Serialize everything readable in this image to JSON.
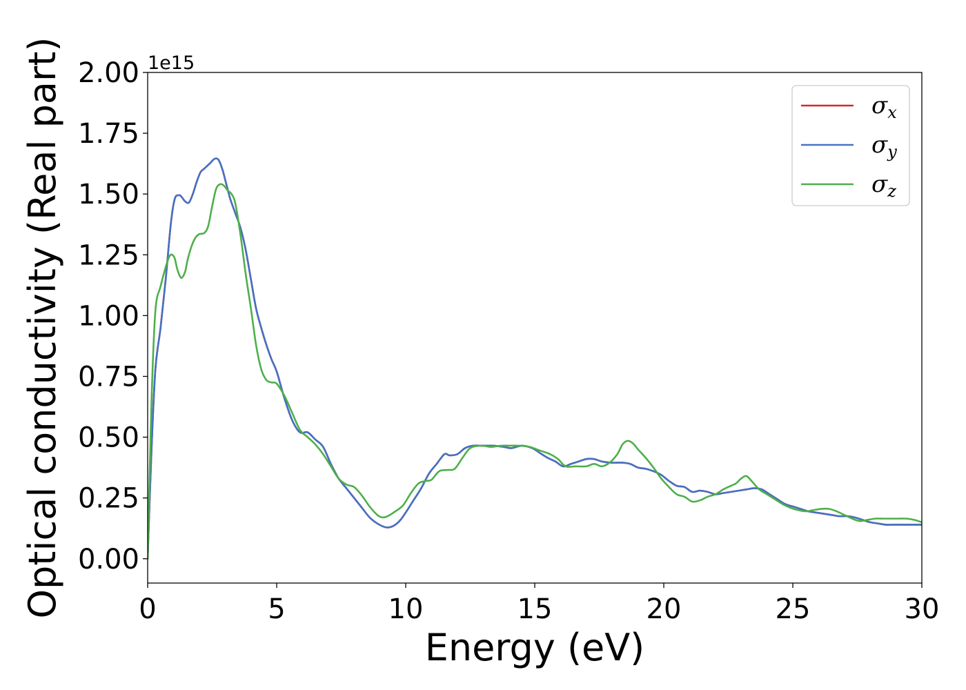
{
  "chart_data": {
    "type": "line",
    "xlabel": "Energy (eV)",
    "ylabel": "Optical conductivity (Real part)",
    "y_offset_text": "1e15",
    "y_scale_factor": 1000000000000000.0,
    "xlim": [
      0,
      30
    ],
    "ylim": [
      -0.1,
      2.0
    ],
    "x_ticks": [
      0,
      5,
      10,
      15,
      20,
      25,
      30
    ],
    "x_tick_labels": [
      "0",
      "5",
      "10",
      "15",
      "20",
      "25",
      "30"
    ],
    "y_ticks": [
      0.0,
      0.25,
      0.5,
      0.75,
      1.0,
      1.25,
      1.5,
      1.75,
      2.0
    ],
    "y_tick_labels": [
      "0.00",
      "0.25",
      "0.50",
      "0.75",
      "1.00",
      "1.25",
      "1.50",
      "1.75",
      "2.00"
    ],
    "grid": false,
    "legend_position": "top-right",
    "series": [
      {
        "name": "σx",
        "legend_base": "σ",
        "legend_sub": "x",
        "color": "#d62728",
        "x": [
          0,
          0.15,
          0.3,
          0.5,
          0.7,
          0.9,
          1.05,
          1.2,
          1.3,
          1.45,
          1.6,
          1.75,
          1.9,
          2.05,
          2.2,
          2.4,
          2.6,
          2.75,
          2.9,
          3.05,
          3.2,
          3.4,
          3.6,
          3.8,
          4.0,
          4.2,
          4.4,
          4.6,
          4.8,
          5.0,
          5.3,
          5.6,
          5.9,
          6.2,
          6.5,
          6.8,
          7.1,
          7.4,
          7.7,
          8.0,
          8.3,
          8.6,
          8.9,
          9.2,
          9.4,
          9.6,
          9.8,
          10.0,
          10.3,
          10.6,
          10.9,
          11.2,
          11.5,
          11.7,
          12.0,
          12.3,
          12.6,
          13.0,
          13.4,
          13.8,
          14.1,
          14.5,
          14.9,
          15.2,
          15.5,
          15.8,
          16.1,
          16.4,
          16.7,
          17.0,
          17.3,
          17.6,
          18.0,
          18.4,
          18.7,
          19.0,
          19.3,
          19.6,
          19.9,
          20.2,
          20.5,
          20.8,
          21.1,
          21.4,
          21.7,
          22.0,
          22.3,
          22.6,
          22.9,
          23.2,
          23.5,
          23.8,
          24.1,
          24.4,
          24.7,
          25.0,
          25.3,
          25.6,
          25.9,
          26.2,
          26.5,
          26.8,
          27.1,
          27.4,
          27.7,
          28.0,
          28.3,
          28.6,
          28.9,
          29.2,
          29.5,
          29.8,
          30.0
        ],
        "y": [
          0.0,
          0.45,
          0.78,
          0.95,
          1.15,
          1.38,
          1.48,
          1.495,
          1.49,
          1.47,
          1.465,
          1.5,
          1.55,
          1.59,
          1.605,
          1.625,
          1.645,
          1.64,
          1.6,
          1.54,
          1.48,
          1.42,
          1.36,
          1.27,
          1.15,
          1.03,
          0.95,
          0.88,
          0.82,
          0.77,
          0.66,
          0.57,
          0.52,
          0.52,
          0.49,
          0.46,
          0.39,
          0.33,
          0.29,
          0.25,
          0.21,
          0.17,
          0.145,
          0.13,
          0.13,
          0.14,
          0.16,
          0.19,
          0.24,
          0.29,
          0.35,
          0.39,
          0.43,
          0.425,
          0.43,
          0.455,
          0.465,
          0.465,
          0.465,
          0.46,
          0.455,
          0.465,
          0.455,
          0.435,
          0.415,
          0.4,
          0.38,
          0.39,
          0.4,
          0.41,
          0.41,
          0.4,
          0.395,
          0.395,
          0.39,
          0.375,
          0.37,
          0.36,
          0.345,
          0.32,
          0.3,
          0.295,
          0.275,
          0.28,
          0.275,
          0.265,
          0.27,
          0.275,
          0.28,
          0.285,
          0.29,
          0.285,
          0.265,
          0.245,
          0.225,
          0.215,
          0.205,
          0.195,
          0.19,
          0.185,
          0.18,
          0.175,
          0.175,
          0.17,
          0.16,
          0.15,
          0.145,
          0.14,
          0.14,
          0.14,
          0.14,
          0.14,
          0.14
        ]
      },
      {
        "name": "σy",
        "legend_base": "σ",
        "legend_sub": "y",
        "color": "#4472c4",
        "x": [
          0,
          0.15,
          0.3,
          0.5,
          0.7,
          0.9,
          1.05,
          1.2,
          1.3,
          1.45,
          1.6,
          1.75,
          1.9,
          2.05,
          2.2,
          2.4,
          2.6,
          2.75,
          2.9,
          3.05,
          3.2,
          3.4,
          3.6,
          3.8,
          4.0,
          4.2,
          4.4,
          4.6,
          4.8,
          5.0,
          5.3,
          5.6,
          5.9,
          6.2,
          6.5,
          6.8,
          7.1,
          7.4,
          7.7,
          8.0,
          8.3,
          8.6,
          8.9,
          9.2,
          9.4,
          9.6,
          9.8,
          10.0,
          10.3,
          10.6,
          10.9,
          11.2,
          11.5,
          11.7,
          12.0,
          12.3,
          12.6,
          13.0,
          13.4,
          13.8,
          14.1,
          14.5,
          14.9,
          15.2,
          15.5,
          15.8,
          16.1,
          16.4,
          16.7,
          17.0,
          17.3,
          17.6,
          18.0,
          18.4,
          18.7,
          19.0,
          19.3,
          19.6,
          19.9,
          20.2,
          20.5,
          20.8,
          21.1,
          21.4,
          21.7,
          22.0,
          22.3,
          22.6,
          22.9,
          23.2,
          23.5,
          23.8,
          24.1,
          24.4,
          24.7,
          25.0,
          25.3,
          25.6,
          25.9,
          26.2,
          26.5,
          26.8,
          27.1,
          27.4,
          27.7,
          28.0,
          28.3,
          28.6,
          28.9,
          29.2,
          29.5,
          29.8,
          30.0
        ],
        "y": [
          0.0,
          0.45,
          0.78,
          0.95,
          1.15,
          1.38,
          1.48,
          1.495,
          1.49,
          1.47,
          1.465,
          1.5,
          1.55,
          1.59,
          1.605,
          1.625,
          1.645,
          1.64,
          1.6,
          1.54,
          1.48,
          1.42,
          1.36,
          1.27,
          1.15,
          1.03,
          0.95,
          0.88,
          0.82,
          0.77,
          0.66,
          0.57,
          0.52,
          0.52,
          0.49,
          0.46,
          0.39,
          0.33,
          0.29,
          0.25,
          0.21,
          0.17,
          0.145,
          0.13,
          0.13,
          0.14,
          0.16,
          0.19,
          0.24,
          0.29,
          0.35,
          0.39,
          0.43,
          0.425,
          0.43,
          0.455,
          0.465,
          0.465,
          0.465,
          0.46,
          0.455,
          0.465,
          0.455,
          0.435,
          0.415,
          0.4,
          0.38,
          0.39,
          0.4,
          0.41,
          0.41,
          0.4,
          0.395,
          0.395,
          0.39,
          0.375,
          0.37,
          0.36,
          0.345,
          0.32,
          0.3,
          0.295,
          0.275,
          0.28,
          0.275,
          0.265,
          0.27,
          0.275,
          0.28,
          0.285,
          0.29,
          0.285,
          0.265,
          0.245,
          0.225,
          0.215,
          0.205,
          0.195,
          0.19,
          0.185,
          0.18,
          0.175,
          0.175,
          0.17,
          0.16,
          0.15,
          0.145,
          0.14,
          0.14,
          0.14,
          0.14,
          0.14,
          0.14
        ]
      },
      {
        "name": "σz",
        "legend_base": "σ",
        "legend_sub": "z",
        "color": "#4daf4a",
        "x": [
          0,
          0.15,
          0.3,
          0.5,
          0.7,
          0.85,
          0.95,
          1.05,
          1.15,
          1.3,
          1.45,
          1.55,
          1.7,
          1.85,
          2.0,
          2.2,
          2.35,
          2.5,
          2.65,
          2.8,
          2.95,
          3.1,
          3.25,
          3.4,
          3.6,
          3.8,
          4.0,
          4.2,
          4.4,
          4.6,
          4.8,
          5.0,
          5.3,
          5.6,
          5.9,
          6.2,
          6.5,
          6.8,
          7.1,
          7.4,
          7.7,
          8.0,
          8.3,
          8.6,
          8.9,
          9.1,
          9.3,
          9.6,
          9.9,
          10.2,
          10.5,
          10.8,
          11.0,
          11.3,
          11.6,
          11.9,
          12.2,
          12.5,
          12.9,
          13.3,
          13.7,
          14.0,
          14.4,
          14.8,
          15.2,
          15.6,
          15.9,
          16.2,
          16.6,
          17.0,
          17.3,
          17.6,
          17.9,
          18.2,
          18.4,
          18.6,
          18.8,
          19.0,
          19.3,
          19.6,
          19.9,
          20.2,
          20.5,
          20.8,
          21.1,
          21.4,
          21.7,
          22.0,
          22.3,
          22.6,
          22.8,
          23.0,
          23.2,
          23.4,
          23.7,
          24.0,
          24.3,
          24.6,
          24.9,
          25.2,
          25.5,
          25.8,
          26.1,
          26.4,
          26.7,
          27.0,
          27.3,
          27.6,
          27.9,
          28.2,
          28.5,
          28.8,
          29.1,
          29.4,
          29.7,
          30.0
        ],
        "y": [
          0.0,
          0.65,
          1.02,
          1.12,
          1.2,
          1.245,
          1.25,
          1.235,
          1.19,
          1.155,
          1.18,
          1.23,
          1.285,
          1.32,
          1.335,
          1.34,
          1.37,
          1.45,
          1.52,
          1.54,
          1.535,
          1.515,
          1.5,
          1.46,
          1.33,
          1.17,
          1.03,
          0.88,
          0.78,
          0.735,
          0.725,
          0.72,
          0.67,
          0.6,
          0.53,
          0.5,
          0.47,
          0.43,
          0.38,
          0.33,
          0.305,
          0.295,
          0.26,
          0.215,
          0.18,
          0.17,
          0.175,
          0.195,
          0.22,
          0.27,
          0.31,
          0.32,
          0.325,
          0.36,
          0.365,
          0.37,
          0.415,
          0.455,
          0.465,
          0.46,
          0.465,
          0.465,
          0.465,
          0.46,
          0.445,
          0.43,
          0.41,
          0.38,
          0.38,
          0.38,
          0.39,
          0.38,
          0.395,
          0.43,
          0.47,
          0.485,
          0.475,
          0.45,
          0.415,
          0.375,
          0.33,
          0.295,
          0.265,
          0.255,
          0.235,
          0.24,
          0.255,
          0.265,
          0.285,
          0.3,
          0.31,
          0.33,
          0.34,
          0.32,
          0.285,
          0.265,
          0.245,
          0.225,
          0.21,
          0.2,
          0.195,
          0.2,
          0.205,
          0.205,
          0.195,
          0.18,
          0.165,
          0.155,
          0.16,
          0.165,
          0.165,
          0.165,
          0.165,
          0.165,
          0.16,
          0.15
        ]
      }
    ]
  }
}
